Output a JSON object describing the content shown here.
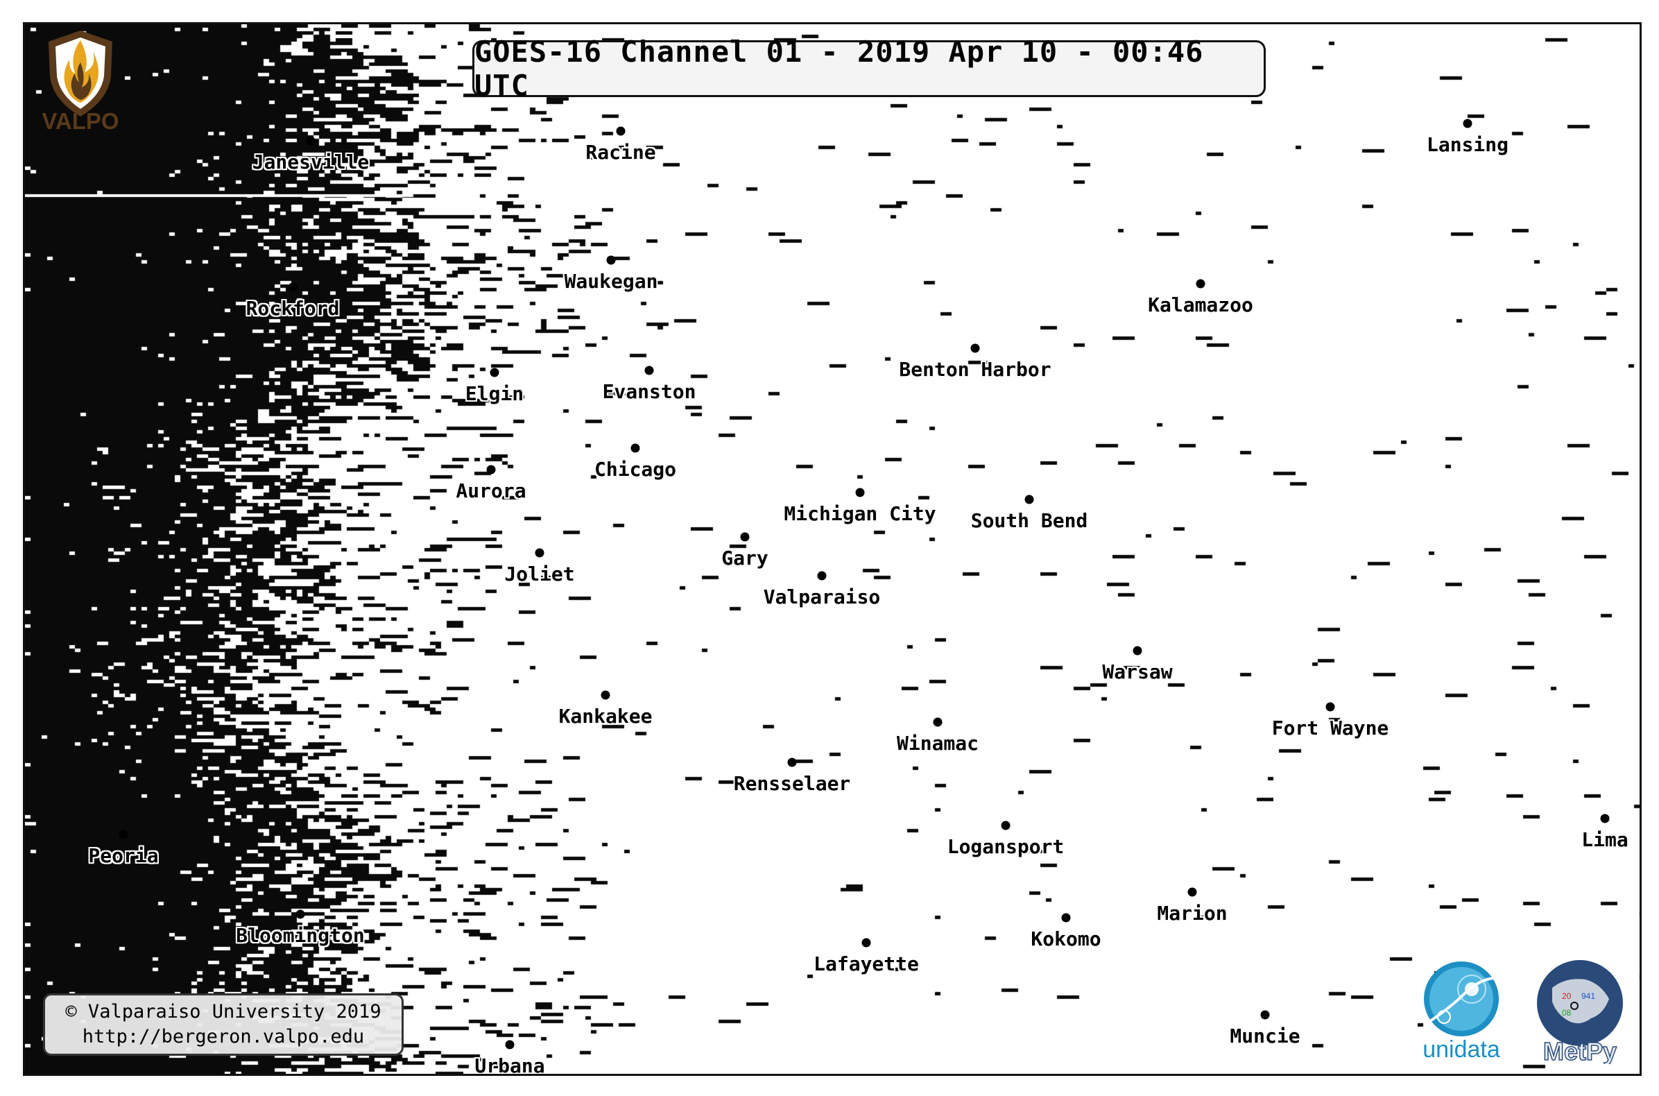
{
  "title": "GOES-16 Channel 01 - 2019 Apr 10 - 00:46 UTC",
  "copyright": {
    "line1": "© Valparaiso University 2019",
    "line2": "http://bergeron.valpo.edu"
  },
  "logos": {
    "valpo": {
      "text": "VALPO",
      "icon": "valpo-crest-flame",
      "color": "#5a3a1a"
    },
    "unidata": {
      "text": "unidata",
      "icon": "unidata-globe",
      "color": "#1d8fc4"
    },
    "metpy": {
      "text": "MetPy",
      "icon": "metpy-globe-station-plot",
      "color": "#2a4a7a"
    }
  },
  "imagery": {
    "description_colors": {
      "cloud": "#ffffff",
      "clear": "#0a0a0a"
    }
  },
  "cities": [
    {
      "name": "Janesville"
    },
    {
      "name": "Racine"
    },
    {
      "name": "Lansing"
    },
    {
      "name": "Waukegan"
    },
    {
      "name": "Kalamazoo"
    },
    {
      "name": "Rockford"
    },
    {
      "name": "Benton Harbor"
    },
    {
      "name": "Elgin"
    },
    {
      "name": "Evanston"
    },
    {
      "name": "Chicago"
    },
    {
      "name": "Aurora"
    },
    {
      "name": "Michigan City"
    },
    {
      "name": "South Bend"
    },
    {
      "name": "Gary"
    },
    {
      "name": "Joliet"
    },
    {
      "name": "Valparaiso"
    },
    {
      "name": "Warsaw"
    },
    {
      "name": "Kankakee"
    },
    {
      "name": "Fort Wayne"
    },
    {
      "name": "Winamac"
    },
    {
      "name": "Rensselaer"
    },
    {
      "name": "Lima"
    },
    {
      "name": "Peoria"
    },
    {
      "name": "Logansport"
    },
    {
      "name": "Marion"
    },
    {
      "name": "Bloomington"
    },
    {
      "name": "Kokomo"
    },
    {
      "name": "Lafayette"
    },
    {
      "name": "Muncie"
    },
    {
      "name": "Urbana"
    }
  ]
}
